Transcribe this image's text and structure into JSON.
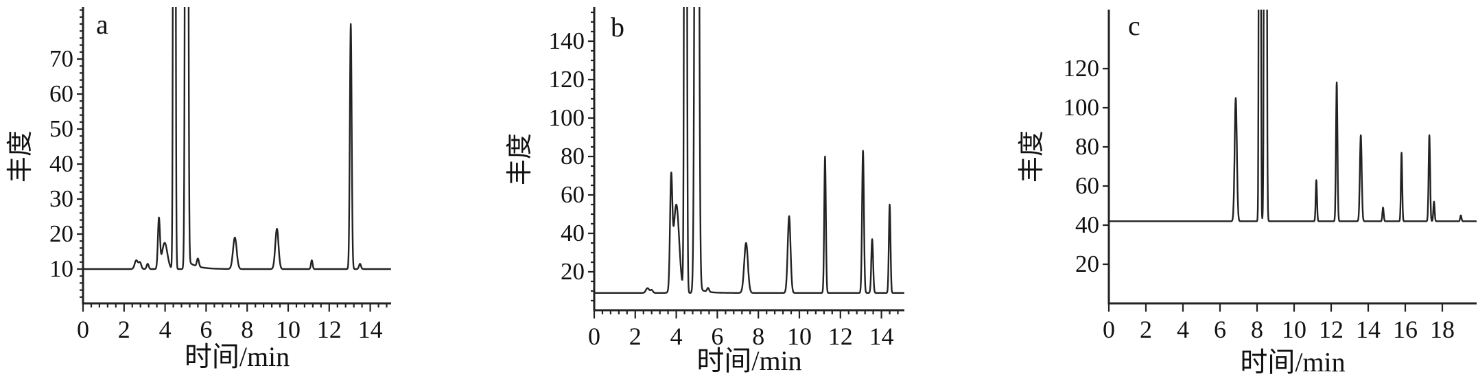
{
  "figure": {
    "description": "Three gas-chromatogram panels labelled a, b and c, black traces on white",
    "trace_color": "#222222",
    "text_color": "#111111"
  },
  "chart_data": [
    {
      "type": "line",
      "panel_label": "a",
      "ylabel": "丰度",
      "xlabel": "时间/min",
      "xlim": [
        0,
        15.2
      ],
      "ylim": [
        0,
        84
      ],
      "xticks": [
        0,
        2,
        4,
        6,
        8,
        10,
        12,
        14
      ],
      "yticks": [
        10,
        20,
        30,
        40,
        50,
        60,
        70
      ],
      "x_minor_step": 0.4,
      "y_minor_step": 2,
      "grid": false,
      "legend": "none",
      "baseline": 10,
      "peaks": [
        {
          "t": 2.6,
          "v": 12.5,
          "w": 0.08
        },
        {
          "t": 2.78,
          "v": 11.8,
          "w": 0.06
        },
        {
          "t": 3.15,
          "v": 11.5,
          "w": 0.05
        },
        {
          "t": 3.7,
          "v": 24.0,
          "w": 0.05
        },
        {
          "t": 3.98,
          "v": 17.5,
          "w": 0.13
        },
        {
          "t": 4.45,
          "v": 500,
          "w": 0.04,
          "offscale": true
        },
        {
          "t": 5.05,
          "v": 500,
          "w": 0.05,
          "offscale": true,
          "tail": {
            "amp": 2.5,
            "decay": 0.45
          }
        },
        {
          "t": 5.6,
          "v": 12.3,
          "w": 0.05
        },
        {
          "t": 7.4,
          "v": 19.0,
          "w": 0.09
        },
        {
          "t": 9.45,
          "v": 21.5,
          "w": 0.08
        },
        {
          "t": 11.15,
          "v": 12.5,
          "w": 0.04
        },
        {
          "t": 13.05,
          "v": 80.0,
          "w": 0.045
        },
        {
          "t": 13.5,
          "v": 11.5,
          "w": 0.05
        }
      ]
    },
    {
      "type": "line",
      "panel_label": "b",
      "ylabel": "丰度",
      "xlabel": "时间/min",
      "xlim": [
        0,
        15.2
      ],
      "ylim": [
        0,
        156
      ],
      "xticks": [
        0,
        2,
        4,
        6,
        8,
        10,
        12,
        14
      ],
      "yticks": [
        20,
        40,
        60,
        80,
        100,
        120,
        140
      ],
      "x_minor_step": 0.4,
      "y_minor_step": 5,
      "grid": false,
      "legend": "none",
      "baseline": 9,
      "peaks": [
        {
          "t": 2.6,
          "v": 11.5,
          "w": 0.08
        },
        {
          "t": 2.8,
          "v": 10.5,
          "w": 0.06
        },
        {
          "t": 3.75,
          "v": 62.0,
          "w": 0.055
        },
        {
          "t": 4.0,
          "v": 55.0,
          "w": 0.14
        },
        {
          "t": 4.45,
          "v": 800,
          "w": 0.045,
          "offscale": true
        },
        {
          "t": 5.0,
          "v": 800,
          "w": 0.07,
          "offscale": true,
          "tail": {
            "amp": 3.0,
            "decay": 0.35
          }
        },
        {
          "t": 5.55,
          "v": 11.0,
          "w": 0.05
        },
        {
          "t": 7.4,
          "v": 35.0,
          "w": 0.09
        },
        {
          "t": 9.5,
          "v": 49.0,
          "w": 0.07
        },
        {
          "t": 11.25,
          "v": 80.0,
          "w": 0.04
        },
        {
          "t": 13.1,
          "v": 83.0,
          "w": 0.045
        },
        {
          "t": 13.55,
          "v": 37.0,
          "w": 0.045
        },
        {
          "t": 14.4,
          "v": 55.0,
          "w": 0.04
        }
      ]
    },
    {
      "type": "line",
      "panel_label": "c",
      "ylabel": "丰度",
      "xlabel": "时间/min",
      "xlim": [
        0,
        19.9
      ],
      "ylim": [
        0,
        150
      ],
      "xticks": [
        0,
        2,
        4,
        6,
        8,
        10,
        12,
        14,
        16,
        18
      ],
      "yticks": [
        20,
        40,
        60,
        80,
        100,
        120
      ],
      "x_minor_step": 0,
      "y_minor_step": 0,
      "grid": false,
      "legend": "none",
      "baseline": 42,
      "peaks": [
        {
          "t": 6.85,
          "v": 105,
          "w": 0.06
        },
        {
          "t": 8.15,
          "v": 900,
          "w": 0.035,
          "offscale": true
        },
        {
          "t": 8.45,
          "v": 900,
          "w": 0.045,
          "offscale": true
        },
        {
          "t": 11.2,
          "v": 63,
          "w": 0.035
        },
        {
          "t": 12.3,
          "v": 113,
          "w": 0.04
        },
        {
          "t": 13.6,
          "v": 86,
          "w": 0.05
        },
        {
          "t": 14.8,
          "v": 49,
          "w": 0.035
        },
        {
          "t": 15.8,
          "v": 77,
          "w": 0.035
        },
        {
          "t": 17.3,
          "v": 86,
          "w": 0.04
        },
        {
          "t": 17.55,
          "v": 52,
          "w": 0.035
        },
        {
          "t": 19.0,
          "v": 45,
          "w": 0.035
        }
      ]
    }
  ]
}
